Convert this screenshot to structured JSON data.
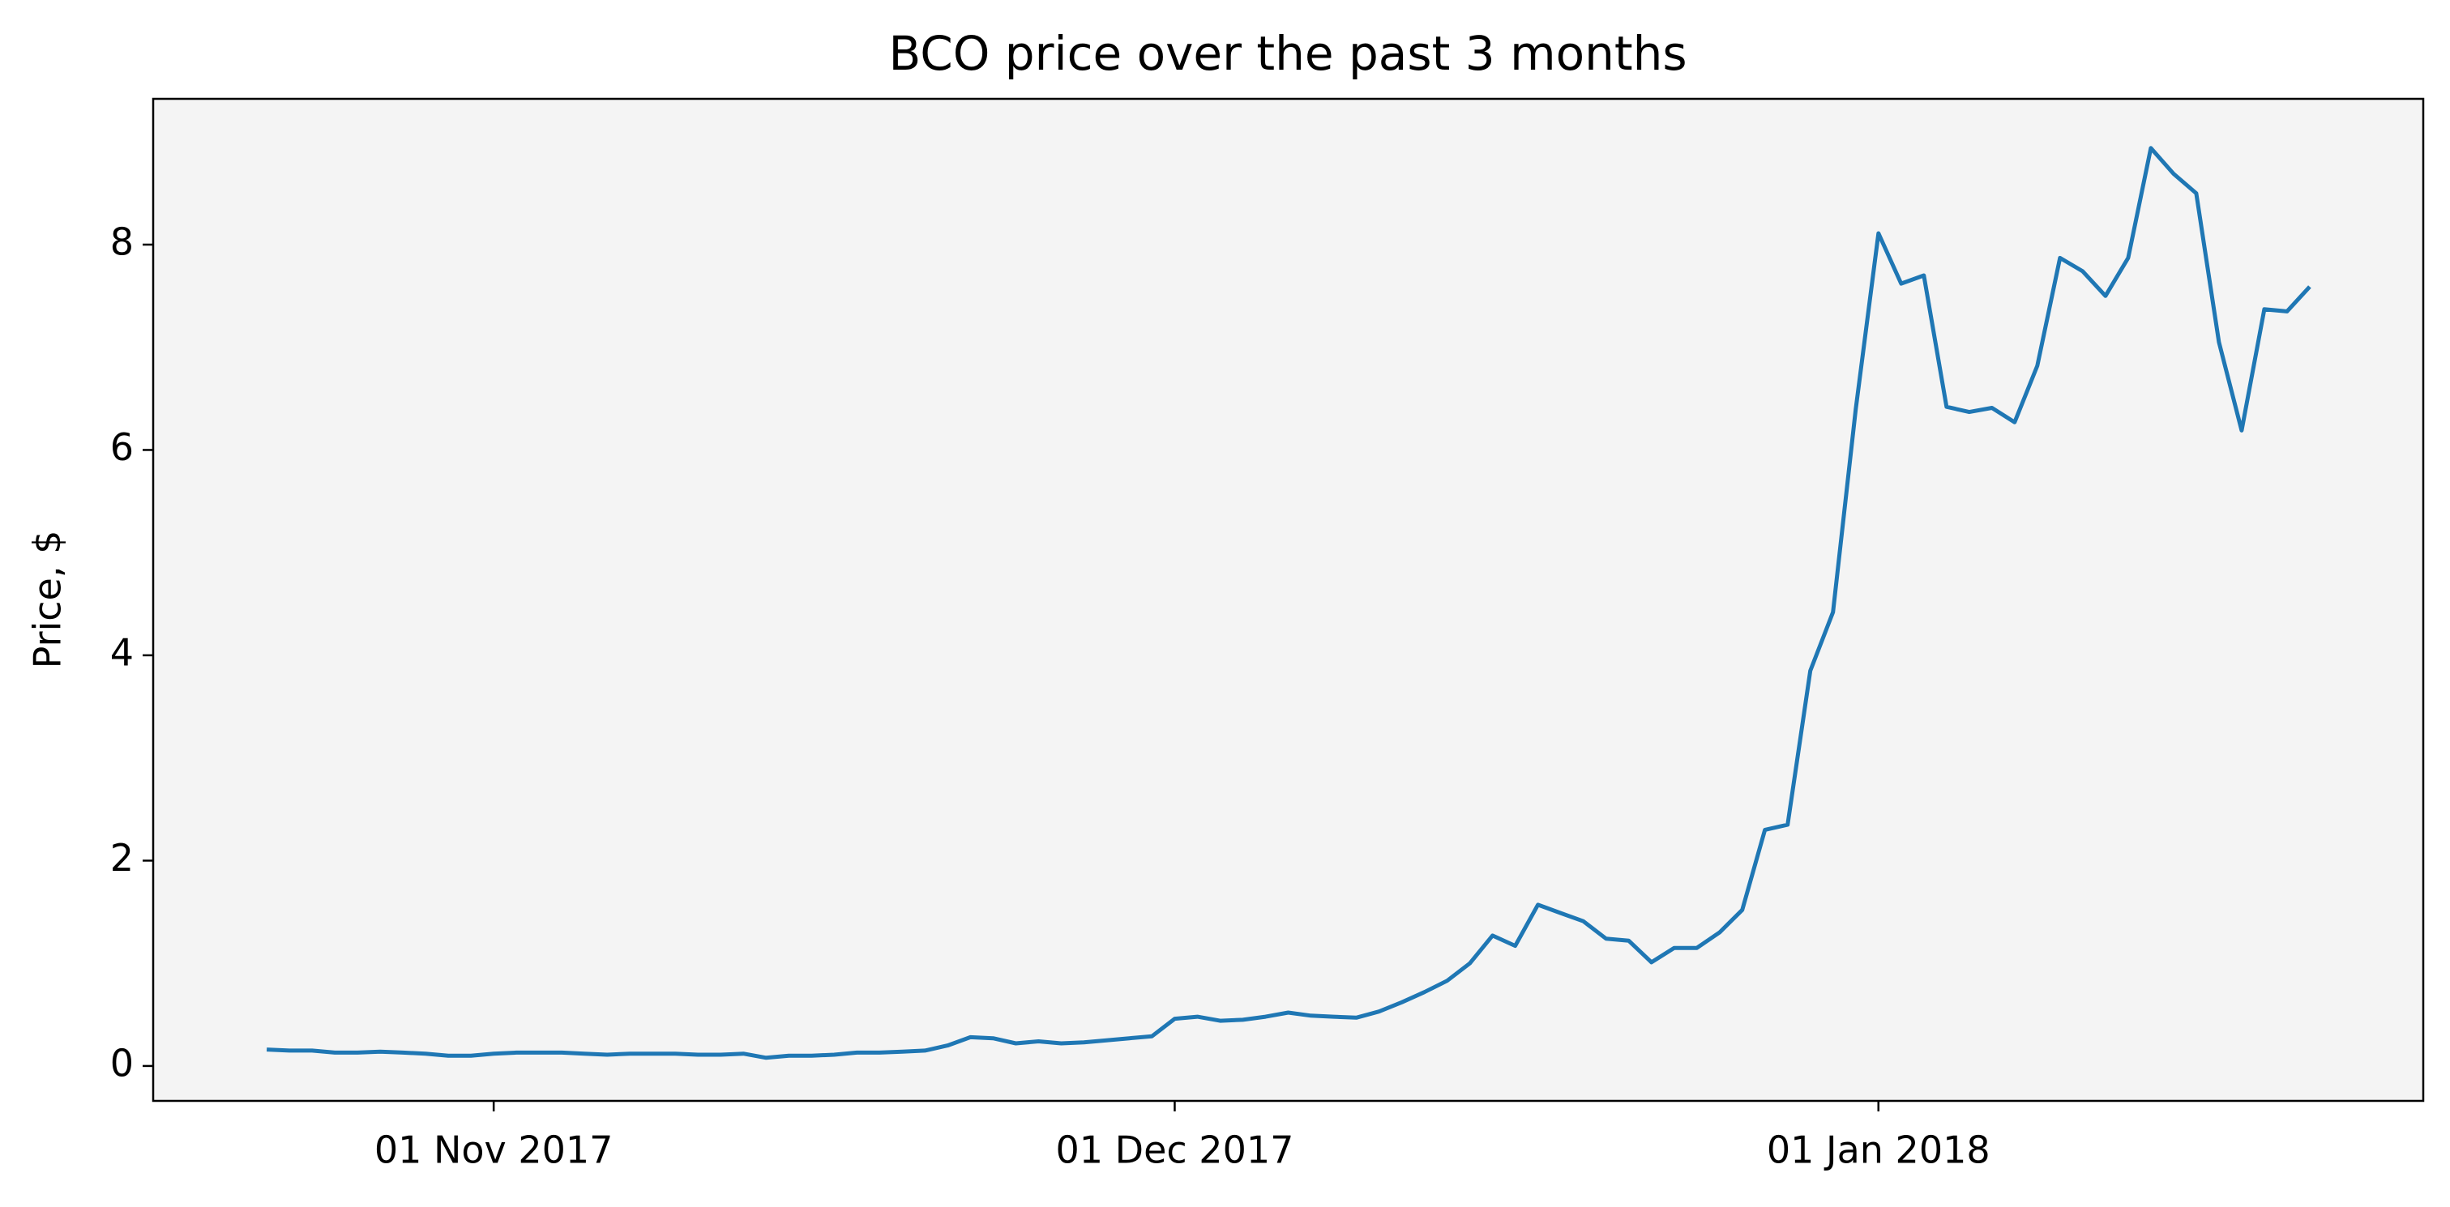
{
  "chart_data": {
    "type": "line",
    "title": "BCO price over the past 3 months",
    "y_label": "Price, $",
    "x": [
      "2017-10-22",
      "2017-10-23",
      "2017-10-24",
      "2017-10-25",
      "2017-10-26",
      "2017-10-27",
      "2017-10-28",
      "2017-10-29",
      "2017-10-30",
      "2017-10-31",
      "2017-11-01",
      "2017-11-02",
      "2017-11-03",
      "2017-11-04",
      "2017-11-05",
      "2017-11-06",
      "2017-11-07",
      "2017-11-08",
      "2017-11-09",
      "2017-11-10",
      "2017-11-11",
      "2017-11-12",
      "2017-11-13",
      "2017-11-14",
      "2017-11-15",
      "2017-11-16",
      "2017-11-17",
      "2017-11-18",
      "2017-11-19",
      "2017-11-20",
      "2017-11-21",
      "2017-11-22",
      "2017-11-23",
      "2017-11-24",
      "2017-11-25",
      "2017-11-26",
      "2017-11-27",
      "2017-11-28",
      "2017-11-29",
      "2017-11-30",
      "2017-12-01",
      "2017-12-02",
      "2017-12-03",
      "2017-12-04",
      "2017-12-05",
      "2017-12-06",
      "2017-12-07",
      "2017-12-08",
      "2017-12-09",
      "2017-12-10",
      "2017-12-11",
      "2017-12-12",
      "2017-12-13",
      "2017-12-14",
      "2017-12-15",
      "2017-12-16",
      "2017-12-17",
      "2017-12-18",
      "2017-12-19",
      "2017-12-20",
      "2017-12-21",
      "2017-12-22",
      "2017-12-23",
      "2017-12-24",
      "2017-12-25",
      "2017-12-26",
      "2017-12-27",
      "2017-12-28",
      "2017-12-29",
      "2017-12-30",
      "2017-12-31",
      "2018-01-01",
      "2018-01-02",
      "2018-01-03",
      "2018-01-04",
      "2018-01-05",
      "2018-01-06",
      "2018-01-07",
      "2018-01-08",
      "2018-01-09",
      "2018-01-10",
      "2018-01-11",
      "2018-01-12",
      "2018-01-13",
      "2018-01-14",
      "2018-01-15",
      "2018-01-16",
      "2018-01-17",
      "2018-01-18",
      "2018-01-19",
      "2018-01-20"
    ],
    "series": [
      {
        "color": "#1f77b4",
        "values": [
          0.16,
          0.15,
          0.15,
          0.13,
          0.13,
          0.14,
          0.13,
          0.12,
          0.1,
          0.1,
          0.12,
          0.13,
          0.13,
          0.13,
          0.12,
          0.11,
          0.12,
          0.12,
          0.12,
          0.11,
          0.11,
          0.12,
          0.08,
          0.1,
          0.1,
          0.11,
          0.13,
          0.13,
          0.14,
          0.15,
          0.2,
          0.28,
          0.27,
          0.22,
          0.24,
          0.22,
          0.23,
          0.25,
          0.27,
          0.29,
          0.46,
          0.48,
          0.44,
          0.45,
          0.48,
          0.52,
          0.49,
          0.48,
          0.47,
          0.53,
          0.62,
          0.72,
          0.83,
          1.0,
          1.27,
          1.17,
          1.57,
          1.49,
          1.41,
          1.24,
          1.22,
          1.01,
          1.15,
          1.15,
          1.3,
          1.52,
          2.3,
          2.35,
          3.85,
          4.42,
          6.4,
          8.11,
          7.62,
          7.7,
          6.42,
          6.37,
          6.41,
          6.27,
          6.82,
          7.87,
          7.74,
          7.5,
          7.87,
          8.94,
          8.69,
          8.5,
          7.05,
          6.19,
          7.37,
          7.35,
          7.59
        ]
      }
    ],
    "xlim": [
      "2017-10-17",
      "2018-01-25"
    ],
    "xticks": [
      {
        "value": "2017-11-01",
        "label": "01 Nov 2017"
      },
      {
        "value": "2017-12-01",
        "label": "01 Dec 2017"
      },
      {
        "value": "2018-01-01",
        "label": "01 Jan 2018"
      }
    ],
    "ylim": [
      -0.34,
      9.42
    ],
    "yticks": [
      0,
      2,
      4,
      6,
      8
    ],
    "background": "#f4f4f4"
  }
}
